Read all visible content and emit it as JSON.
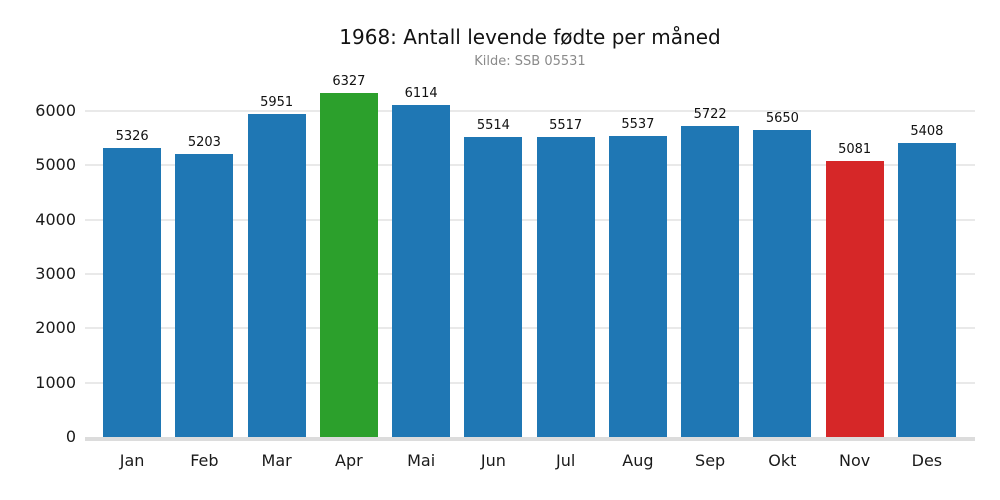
{
  "chart_data": {
    "type": "bar",
    "title": "1968: Antall levende fødte per måned",
    "subtitle": "Kilde: SSB 05531",
    "categories": [
      "Jan",
      "Feb",
      "Mar",
      "Apr",
      "Mai",
      "Jun",
      "Jul",
      "Aug",
      "Sep",
      "Okt",
      "Nov",
      "Des"
    ],
    "values": [
      5326,
      5203,
      5951,
      6327,
      6114,
      5514,
      5517,
      5537,
      5722,
      5650,
      5081,
      5408
    ],
    "bar_colors": [
      "#1f77b4",
      "#1f77b4",
      "#1f77b4",
      "#2ca02c",
      "#1f77b4",
      "#1f77b4",
      "#1f77b4",
      "#1f77b4",
      "#1f77b4",
      "#1f77b4",
      "#d62728",
      "#1f77b4"
    ],
    "value_labels": [
      5326,
      5203,
      5951,
      6327,
      6114,
      5514,
      5517,
      5537,
      5722,
      5650,
      5081,
      5408
    ],
    "xlabel": "",
    "ylabel": "",
    "yticks": [
      0,
      1000,
      2000,
      3000,
      4000,
      5000,
      6000
    ],
    "ylim": [
      0,
      6500
    ],
    "grid": "horizontal",
    "legend": "none",
    "colors": {
      "default_bar": "#1f77b4",
      "max_highlight": "#2ca02c",
      "min_highlight": "#d62728",
      "gridline": "#e9e9e9",
      "baseline": "#dcdcdc",
      "title_text": "#121212",
      "subtitle_text": "#8a8a8a",
      "tick_text": "#1a1a1a",
      "background": "#ffffff"
    }
  }
}
